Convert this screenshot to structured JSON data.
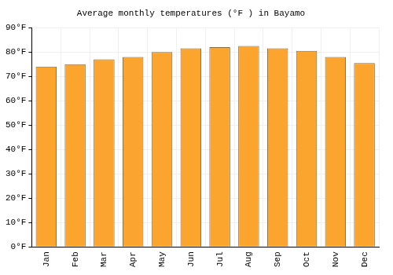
{
  "chart_data": {
    "type": "bar",
    "title": "Average monthly temperatures (°F ) in Bayamo",
    "categories": [
      "Jan",
      "Feb",
      "Mar",
      "Apr",
      "May",
      "Jun",
      "Jul",
      "Aug",
      "Sep",
      "Oct",
      "Nov",
      "Dec"
    ],
    "values": [
      74,
      75,
      77,
      78,
      80,
      81.5,
      82,
      82.5,
      81.5,
      80.5,
      78,
      75.5
    ],
    "color": "#fca52e",
    "ylim": [
      0,
      90
    ],
    "yticks": [
      {
        "value": 0,
        "label": "0°F"
      },
      {
        "value": 10,
        "label": "10°F"
      },
      {
        "value": 20,
        "label": "20°F"
      },
      {
        "value": 30,
        "label": "30°F"
      },
      {
        "value": 40,
        "label": "40°F"
      },
      {
        "value": 50,
        "label": "50°F"
      },
      {
        "value": 60,
        "label": "60°F"
      },
      {
        "value": 70,
        "label": "70°F"
      },
      {
        "value": 80,
        "label": "80°F"
      },
      {
        "value": 90,
        "label": "90°F"
      }
    ],
    "grid": true
  }
}
